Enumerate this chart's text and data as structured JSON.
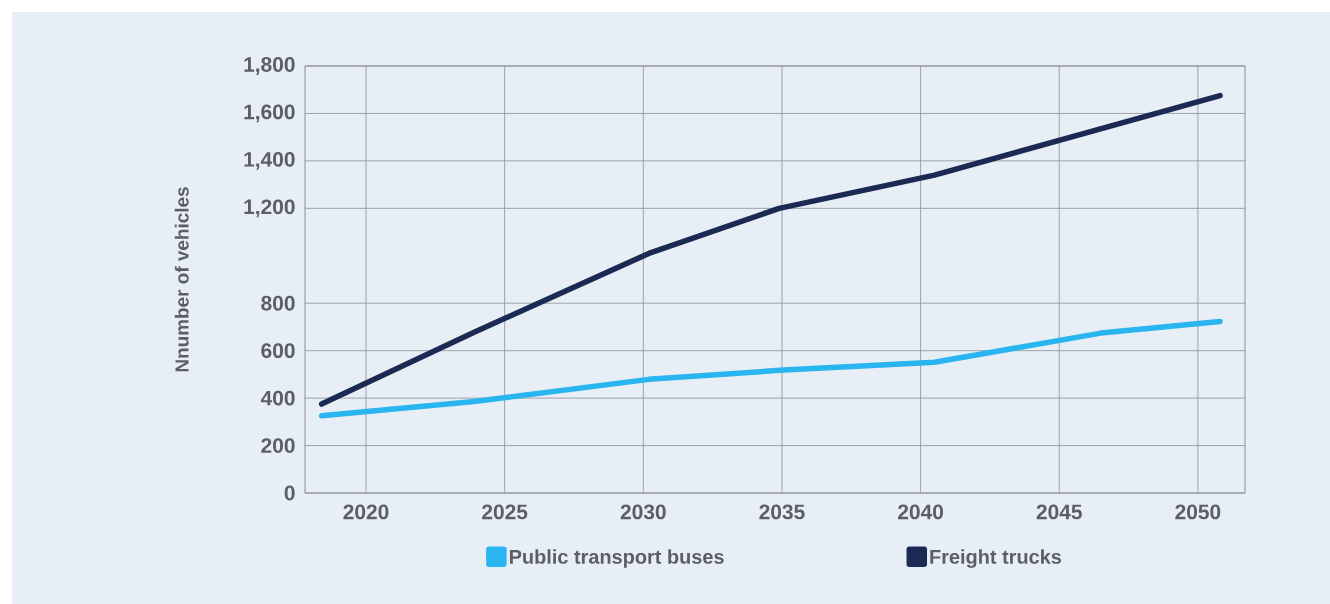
{
  "chart_data": {
    "type": "line",
    "ylabel": "Nnumber of vehicles",
    "xlim": [
      2017.8,
      2051.7
    ],
    "xticks": [
      2020,
      2025,
      2030,
      2035,
      2040,
      2045,
      2050
    ],
    "ylim": [
      0,
      1800
    ],
    "yticks": [
      0,
      200,
      400,
      600,
      800,
      {
        "value": 1200,
        "label": "1,200"
      },
      {
        "value": 1400,
        "label": "1,400"
      },
      {
        "value": 1600,
        "label": "1,600"
      },
      {
        "value": 1800,
        "label": "1,800"
      }
    ],
    "grid": true,
    "legend": "bottom",
    "marker": "none",
    "line_style": "solid",
    "series": [
      {
        "name": "Public transport buses",
        "color": "#29b5ef",
        "x": [
          2018.4,
          2023.9,
          2030.2,
          2034.9,
          2040.5,
          2046.5,
          2050.8
        ],
        "values": [
          326,
          386,
          479,
          517,
          551,
          674,
          723
        ]
      },
      {
        "name": "Freight trucks",
        "color": "#1b2a52",
        "x": [
          2018.4,
          2023.9,
          2030.2,
          2034.9,
          2040.5,
          2050.8
        ],
        "values": [
          375,
          678,
          1010,
          1200,
          1340,
          1675
        ]
      }
    ]
  }
}
